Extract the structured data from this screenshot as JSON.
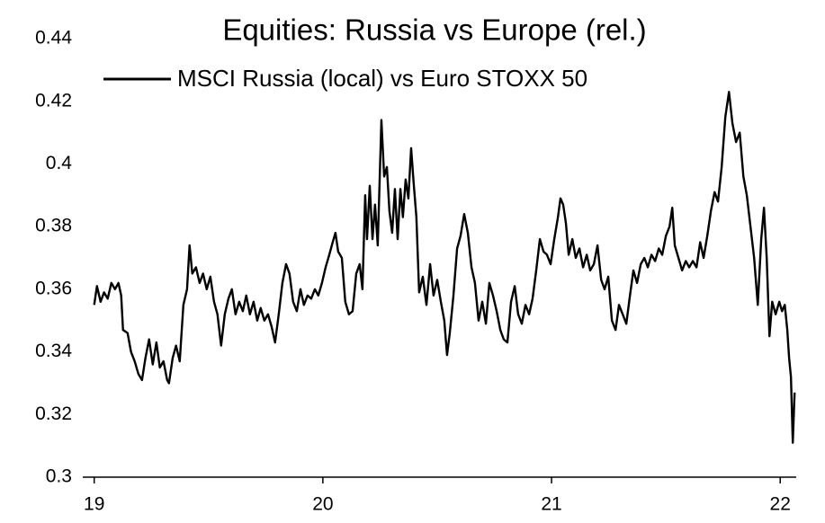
{
  "chart_data": {
    "type": "line",
    "title": "Equities: Russia vs Europe (rel.)",
    "x": [
      19.0,
      19.012,
      19.028,
      19.043,
      19.059,
      19.075,
      19.091,
      19.106,
      19.118,
      19.126,
      19.146,
      19.161,
      19.177,
      19.193,
      19.209,
      19.224,
      19.24,
      19.256,
      19.272,
      19.287,
      19.303,
      19.319,
      19.327,
      19.343,
      19.358,
      19.374,
      19.39,
      19.406,
      19.417,
      19.429,
      19.445,
      19.461,
      19.476,
      19.492,
      19.508,
      19.524,
      19.539,
      19.555,
      19.571,
      19.587,
      19.602,
      19.618,
      19.634,
      19.65,
      19.665,
      19.681,
      19.697,
      19.713,
      19.728,
      19.744,
      19.76,
      19.776,
      19.791,
      19.807,
      19.823,
      19.839,
      19.854,
      19.87,
      19.886,
      19.902,
      19.917,
      19.933,
      19.949,
      19.965,
      19.98,
      19.996,
      20.012,
      20.028,
      20.043,
      20.055,
      20.067,
      20.083,
      20.098,
      20.114,
      20.13,
      20.146,
      20.161,
      20.173,
      20.185,
      20.193,
      20.205,
      20.217,
      20.228,
      20.24,
      20.256,
      20.268,
      20.28,
      20.291,
      20.303,
      20.315,
      20.327,
      20.339,
      20.35,
      20.362,
      20.374,
      20.386,
      20.398,
      20.409,
      20.421,
      20.437,
      20.453,
      20.469,
      20.484,
      20.5,
      20.516,
      20.531,
      20.543,
      20.555,
      20.571,
      20.587,
      20.602,
      20.618,
      20.634,
      20.65,
      20.665,
      20.681,
      20.697,
      20.713,
      20.728,
      20.744,
      20.76,
      20.776,
      20.791,
      20.807,
      20.823,
      20.839,
      20.854,
      20.87,
      20.886,
      20.902,
      20.917,
      20.933,
      20.949,
      20.965,
      20.98,
      20.996,
      21.012,
      21.028,
      21.039,
      21.051,
      21.063,
      21.075,
      21.091,
      21.106,
      21.122,
      21.138,
      21.154,
      21.169,
      21.185,
      21.201,
      21.217,
      21.232,
      21.248,
      21.264,
      21.28,
      21.295,
      21.311,
      21.327,
      21.343,
      21.358,
      21.374,
      21.39,
      21.406,
      21.421,
      21.437,
      21.453,
      21.469,
      21.484,
      21.5,
      21.516,
      21.528,
      21.539,
      21.555,
      21.571,
      21.587,
      21.602,
      21.618,
      21.634,
      21.65,
      21.665,
      21.681,
      21.697,
      21.713,
      21.728,
      21.744,
      21.76,
      21.776,
      21.791,
      21.807,
      21.823,
      21.839,
      21.854,
      21.87,
      21.886,
      21.902,
      21.917,
      21.929,
      21.941,
      21.953,
      21.965,
      21.98,
      21.996,
      22.008,
      22.02,
      22.031,
      22.039,
      22.047,
      22.055,
      22.063
    ],
    "series": [
      {
        "name": "MSCI Russia (local) vs Euro STOXX 50",
        "color": "#000000",
        "values": [
          0.355,
          0.361,
          0.356,
          0.359,
          0.357,
          0.362,
          0.36,
          0.362,
          0.358,
          0.347,
          0.346,
          0.34,
          0.337,
          0.333,
          0.331,
          0.338,
          0.344,
          0.336,
          0.343,
          0.335,
          0.337,
          0.331,
          0.33,
          0.338,
          0.342,
          0.337,
          0.355,
          0.36,
          0.374,
          0.365,
          0.367,
          0.362,
          0.365,
          0.36,
          0.364,
          0.356,
          0.352,
          0.342,
          0.352,
          0.357,
          0.36,
          0.352,
          0.356,
          0.353,
          0.358,
          0.352,
          0.356,
          0.35,
          0.354,
          0.35,
          0.352,
          0.348,
          0.343,
          0.352,
          0.362,
          0.368,
          0.365,
          0.356,
          0.353,
          0.36,
          0.355,
          0.358,
          0.357,
          0.36,
          0.358,
          0.362,
          0.367,
          0.371,
          0.375,
          0.378,
          0.372,
          0.37,
          0.356,
          0.352,
          0.353,
          0.365,
          0.368,
          0.36,
          0.39,
          0.376,
          0.393,
          0.376,
          0.387,
          0.374,
          0.414,
          0.396,
          0.399,
          0.385,
          0.378,
          0.392,
          0.376,
          0.392,
          0.383,
          0.395,
          0.389,
          0.405,
          0.393,
          0.383,
          0.359,
          0.364,
          0.355,
          0.368,
          0.358,
          0.363,
          0.356,
          0.35,
          0.339,
          0.346,
          0.358,
          0.373,
          0.377,
          0.384,
          0.378,
          0.367,
          0.362,
          0.35,
          0.356,
          0.349,
          0.362,
          0.358,
          0.353,
          0.347,
          0.344,
          0.343,
          0.356,
          0.361,
          0.352,
          0.349,
          0.355,
          0.352,
          0.357,
          0.366,
          0.376,
          0.372,
          0.371,
          0.368,
          0.376,
          0.383,
          0.389,
          0.387,
          0.381,
          0.371,
          0.376,
          0.37,
          0.373,
          0.367,
          0.371,
          0.366,
          0.368,
          0.374,
          0.363,
          0.36,
          0.364,
          0.35,
          0.347,
          0.355,
          0.352,
          0.349,
          0.358,
          0.366,
          0.362,
          0.368,
          0.37,
          0.367,
          0.371,
          0.369,
          0.373,
          0.371,
          0.377,
          0.38,
          0.386,
          0.374,
          0.37,
          0.366,
          0.369,
          0.367,
          0.369,
          0.367,
          0.375,
          0.37,
          0.377,
          0.385,
          0.391,
          0.388,
          0.399,
          0.415,
          0.423,
          0.413,
          0.407,
          0.41,
          0.396,
          0.39,
          0.38,
          0.37,
          0.355,
          0.376,
          0.386,
          0.37,
          0.345,
          0.356,
          0.352,
          0.356,
          0.353,
          0.355,
          0.347,
          0.338,
          0.332,
          0.311,
          0.327
        ]
      }
    ],
    "xlim": [
      18.95,
      22.07
    ],
    "xticks": [
      19,
      20,
      21,
      22
    ],
    "ylim": [
      0.3,
      0.44
    ],
    "yticks": [
      0.3,
      0.32,
      0.34,
      0.36,
      0.38,
      0.4,
      0.42,
      0.44
    ],
    "grid": false
  }
}
